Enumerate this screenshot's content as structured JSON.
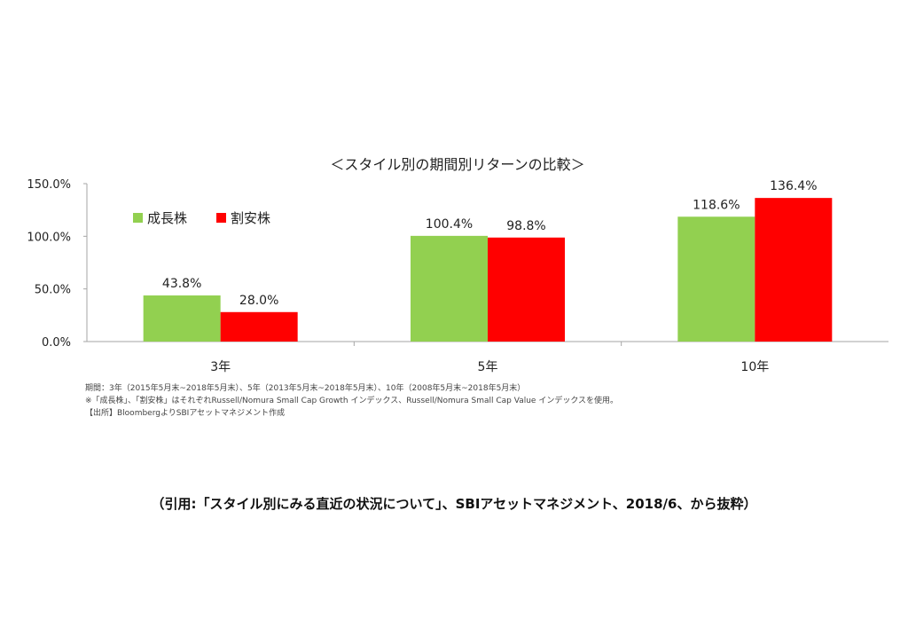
{
  "chart_data": {
    "type": "bar",
    "title": "＜スタイル別の期間別リターンの比較＞",
    "xlabel": "",
    "ylabel": "",
    "categories": [
      "3年",
      "5年",
      "10年"
    ],
    "series": [
      {
        "name": "成長株",
        "values": [
          43.8,
          100.4,
          118.6
        ],
        "labels": [
          "43.8%",
          "100.4%",
          "118.6%"
        ],
        "color": "#92d050"
      },
      {
        "name": "割安株",
        "values": [
          28.0,
          98.8,
          136.4
        ],
        "labels": [
          "28.0%",
          "98.8%",
          "136.4%"
        ],
        "color": "#ff0000"
      }
    ],
    "ylim": [
      0,
      150
    ],
    "yticks": [
      0,
      50,
      100,
      150
    ],
    "ytick_labels": [
      "0.0%",
      "50.0%",
      "100.0%",
      "150.0%"
    ],
    "grid": false,
    "legend_position": "top-left"
  },
  "notes": [
    "期間：3年（2015年5月末~2018年5月末）、5年（2013年5月末~2018年5月末）、10年（2008年5月末~2018年5月末）",
    "※「成長株」、「割安株」はそれぞれRussell/Nomura Small Cap Growth インデックス、Russell/Nomura Small Cap Value インデックスを使用。",
    "【出所】BloombergよりSBIアセットマネジメント作成"
  ],
  "citation": "（引用:「スタイル別にみる直近の状況について」、SBIアセットマネジメント、2018/6、から抜粋）"
}
